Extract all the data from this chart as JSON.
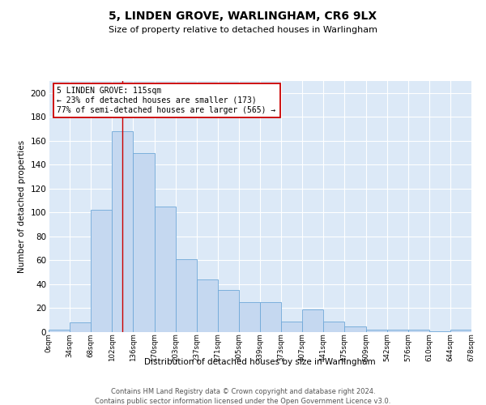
{
  "title1": "5, LINDEN GROVE, WARLINGHAM, CR6 9LX",
  "title2": "Size of property relative to detached houses in Warlingham",
  "xlabel": "Distribution of detached houses by size in Warlingham",
  "ylabel": "Number of detached properties",
  "bin_labels": [
    "0sqm",
    "34sqm",
    "68sqm",
    "102sqm",
    "136sqm",
    "170sqm",
    "203sqm",
    "237sqm",
    "271sqm",
    "305sqm",
    "339sqm",
    "373sqm",
    "407sqm",
    "441sqm",
    "475sqm",
    "509sqm",
    "542sqm",
    "576sqm",
    "610sqm",
    "644sqm",
    "678sqm"
  ],
  "bar_values": [
    2,
    8,
    102,
    168,
    150,
    105,
    61,
    44,
    35,
    25,
    25,
    9,
    19,
    9,
    5,
    2,
    2,
    2,
    1,
    2
  ],
  "bar_color": "#c5d8f0",
  "bar_edge_color": "#6fa8d8",
  "red_line_x": 3.5,
  "annotation_text": "5 LINDEN GROVE: 115sqm\n← 23% of detached houses are smaller (173)\n77% of semi-detached houses are larger (565) →",
  "annotation_box_color": "#ffffff",
  "annotation_box_edge": "#cc0000",
  "ylim": [
    0,
    210
  ],
  "yticks": [
    0,
    20,
    40,
    60,
    80,
    100,
    120,
    140,
    160,
    180,
    200
  ],
  "footer1": "Contains HM Land Registry data © Crown copyright and database right 2024.",
  "footer2": "Contains public sector information licensed under the Open Government Licence v3.0.",
  "bg_color": "#ffffff",
  "plot_bg_color": "#dce9f7"
}
